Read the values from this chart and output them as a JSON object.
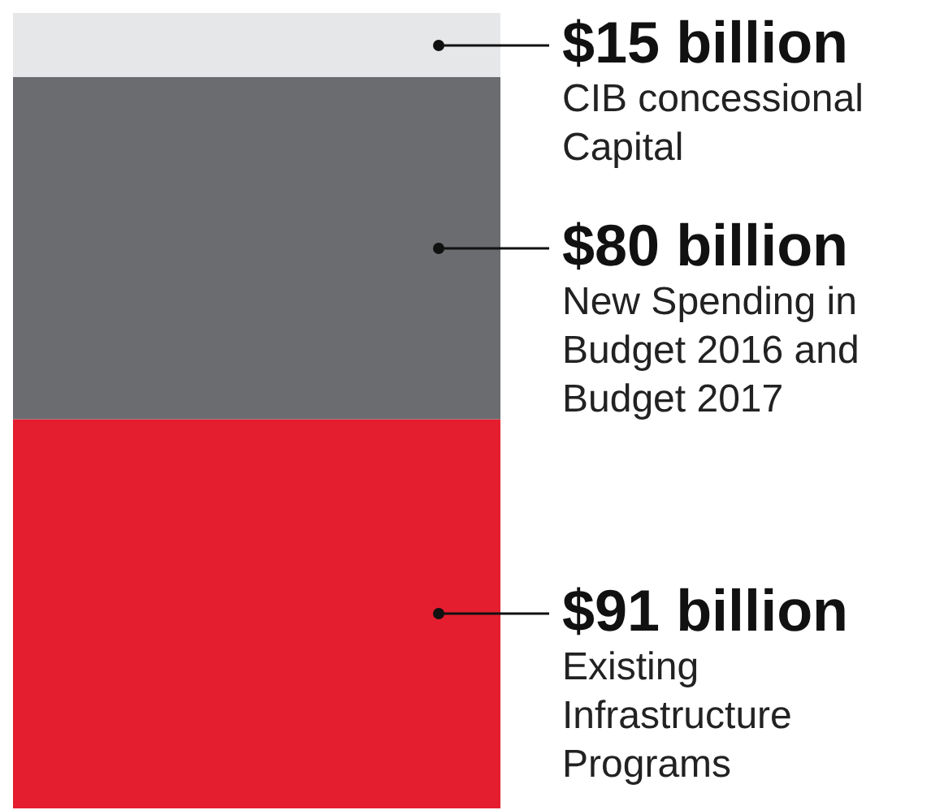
{
  "chart_data": {
    "type": "bar",
    "stacked": true,
    "categories": [
      null
    ],
    "series": [
      {
        "name": "Existing Infrastructure Programs",
        "color": "#e41e2f",
        "values": [
          91
        ],
        "value_labels": [
          "$91 billion"
        ]
      },
      {
        "name": "New Spending in Budget 2016 and Budget 2017",
        "color": "#6b6c70",
        "values": [
          80
        ],
        "value_labels": [
          "$80 billion"
        ]
      },
      {
        "name": "CIB concessional Capital",
        "color": "#e6e7e8",
        "values": [
          15
        ],
        "value_labels": [
          "$15 billion"
        ]
      }
    ]
  }
}
